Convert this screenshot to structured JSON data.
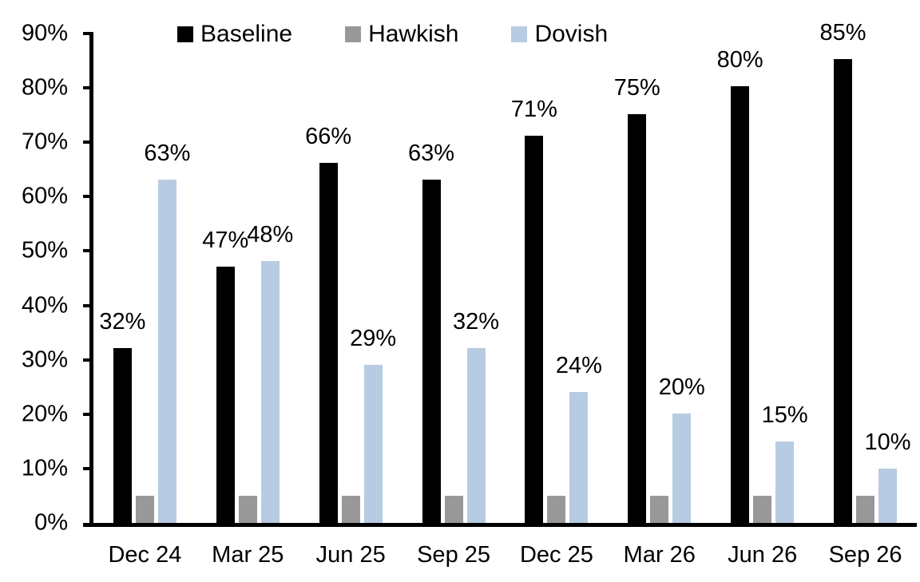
{
  "chart_data": {
    "type": "bar",
    "title": "",
    "xlabel": "",
    "ylabel": "",
    "categories": [
      "Dec 24",
      "Mar 25",
      "Jun 25",
      "Sep 25",
      "Dec 25",
      "Mar 26",
      "Jun 26",
      "Sep 26"
    ],
    "series": [
      {
        "name": "Baseline",
        "color": "#000000",
        "values": [
          32,
          47,
          66,
          63,
          71,
          75,
          80,
          85
        ],
        "data_labels": [
          "32%",
          "47%",
          "66%",
          "63%",
          "71%",
          "75%",
          "80%",
          "85%"
        ]
      },
      {
        "name": "Hawkish",
        "color": "#989898",
        "values": [
          5,
          5,
          5,
          5,
          5,
          5,
          5,
          5
        ],
        "data_labels": [
          "",
          "",
          "",
          "",
          "",
          "",
          "",
          ""
        ]
      },
      {
        "name": "Dovish",
        "color": "#B7CCE2",
        "values": [
          63,
          48,
          29,
          32,
          24,
          20,
          15,
          10
        ],
        "data_labels": [
          "63%",
          "48%",
          "29%",
          "32%",
          "24%",
          "20%",
          "15%",
          "10%"
        ]
      }
    ],
    "ylim": [
      0,
      90
    ],
    "y_ticks": [
      {
        "value": 0,
        "label": "0%"
      },
      {
        "value": 10,
        "label": "10%"
      },
      {
        "value": 20,
        "label": "20%"
      },
      {
        "value": 30,
        "label": "30%"
      },
      {
        "value": 40,
        "label": "40%"
      },
      {
        "value": 50,
        "label": "50%"
      },
      {
        "value": 60,
        "label": "60%"
      },
      {
        "value": 70,
        "label": "70%"
      },
      {
        "value": 80,
        "label": "80%"
      },
      {
        "value": 90,
        "label": "90%"
      }
    ],
    "grid": false,
    "legend_position": "top",
    "axis_color": "#000000",
    "background_color": "#ffffff"
  }
}
